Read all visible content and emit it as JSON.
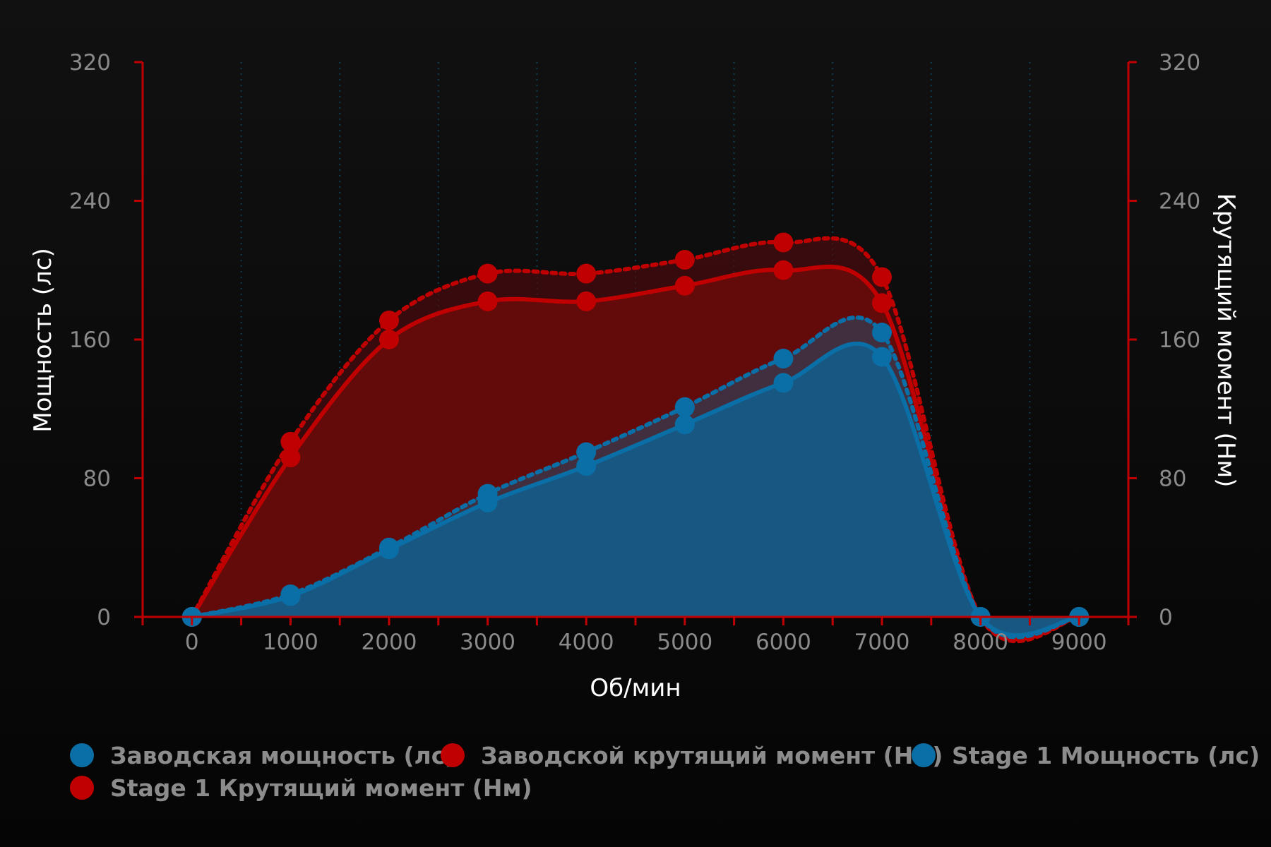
{
  "chart_data": {
    "type": "line",
    "x_label": "Об/мин",
    "y_label_left": "Мощность (лс)",
    "y_label_right": "Крутящий момент (Нм)",
    "x": [
      0,
      1000,
      2000,
      3000,
      4000,
      5000,
      6000,
      7000,
      8000,
      9000
    ],
    "x_ticks": [
      "0",
      "1000",
      "2000",
      "3000",
      "4000",
      "5000",
      "6000",
      "7000",
      "8000",
      "9000"
    ],
    "xlim": [
      -500,
      9500
    ],
    "ylim_left": [
      0,
      320
    ],
    "ylim_right": [
      0,
      320
    ],
    "y_ticks_left": [
      "0",
      "80",
      "160",
      "240",
      "320"
    ],
    "y_ticks_right": [
      "0",
      "80",
      "160",
      "240",
      "320"
    ],
    "grid": "vertical dotted",
    "legend_position": "bottom",
    "series": [
      {
        "name": "Заводская мощность (лс)",
        "color": "#0a6fa6",
        "style": "solid",
        "axis": "left",
        "values": [
          0,
          12,
          39,
          66,
          87,
          111,
          135,
          150,
          0,
          0
        ]
      },
      {
        "name": "Заводской крутящий момент (Нм)",
        "color": "#c00000",
        "style": "solid",
        "axis": "right",
        "values": [
          0,
          92,
          160,
          182,
          182,
          191,
          200,
          181,
          0,
          0
        ]
      },
      {
        "name": "Stage 1 Мощность (лс)",
        "color": "#0a6fa6",
        "style": "dotted",
        "axis": "left",
        "values": [
          0,
          13,
          40,
          71,
          95,
          121,
          149,
          164,
          0,
          0
        ]
      },
      {
        "name": "Stage 1 Крутящий момент (Нм)",
        "color": "#c00000",
        "style": "dotted",
        "axis": "right",
        "values": [
          0,
          101,
          171,
          198,
          198,
          206,
          216,
          196,
          0,
          0
        ]
      }
    ]
  }
}
